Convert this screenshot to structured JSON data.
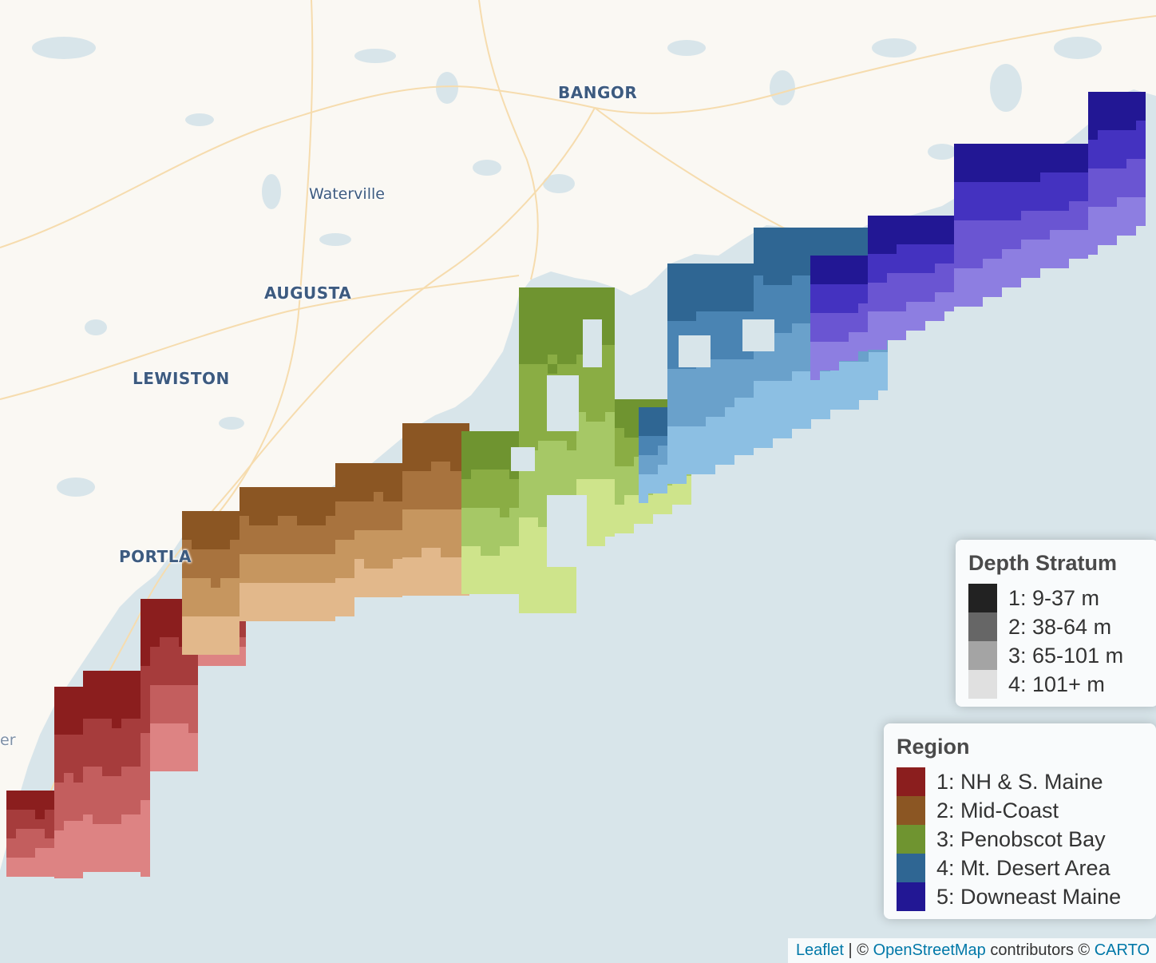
{
  "map": {
    "cities": [
      {
        "name": "BANGOR",
        "style": "major"
      },
      {
        "name": "Waterville",
        "style": "minor"
      },
      {
        "name": "AUGUSTA",
        "style": "major"
      },
      {
        "name": "LEWISTON",
        "style": "major"
      },
      {
        "name": "PORTLA",
        "style": "major"
      },
      {
        "name": "er",
        "style": "minor"
      }
    ],
    "colors": {
      "land": "#faf8f3",
      "water": "#d8e5ea",
      "road": "#f6dcae",
      "region1": [
        "#8b1e1e",
        "#a63c3c",
        "#c35e5e",
        "#dd8383"
      ],
      "region2": [
        "#8b5623",
        "#a8733e",
        "#c6965f",
        "#e2b88b"
      ],
      "region3": [
        "#6f9430",
        "#8aad44",
        "#a6c866",
        "#cee48b"
      ],
      "region4": [
        "#2f6693",
        "#4a84b3",
        "#6aa1cb",
        "#8cbfe3"
      ],
      "region5": [
        "#221794",
        "#4432c0",
        "#6a55d2",
        "#8d7ee1"
      ]
    }
  },
  "legend_depth": {
    "title": "Depth Stratum",
    "items": [
      {
        "label": "1: 9-37 m",
        "color": "#222222"
      },
      {
        "label": "2: 38-64 m",
        "color": "#666666"
      },
      {
        "label": "3: 65-101 m",
        "color": "#a4a4a4"
      },
      {
        "label": "4: 101+ m",
        "color": "#e0e0e0"
      }
    ]
  },
  "legend_region": {
    "title": "Region",
    "items": [
      {
        "label": "1: NH & S. Maine",
        "color": "#8b1e1e"
      },
      {
        "label": "2: Mid-Coast",
        "color": "#8b5623"
      },
      {
        "label": "3: Penobscot Bay",
        "color": "#6f9430"
      },
      {
        "label": "4: Mt. Desert Area",
        "color": "#2f6693"
      },
      {
        "label": "5: Downeast Maine",
        "color": "#221794"
      }
    ]
  },
  "attribution": {
    "leaflet": "Leaflet",
    "sep": " | © ",
    "osm": "OpenStreetMap",
    "contributors": " contributors © ",
    "carto": "CARTO"
  }
}
